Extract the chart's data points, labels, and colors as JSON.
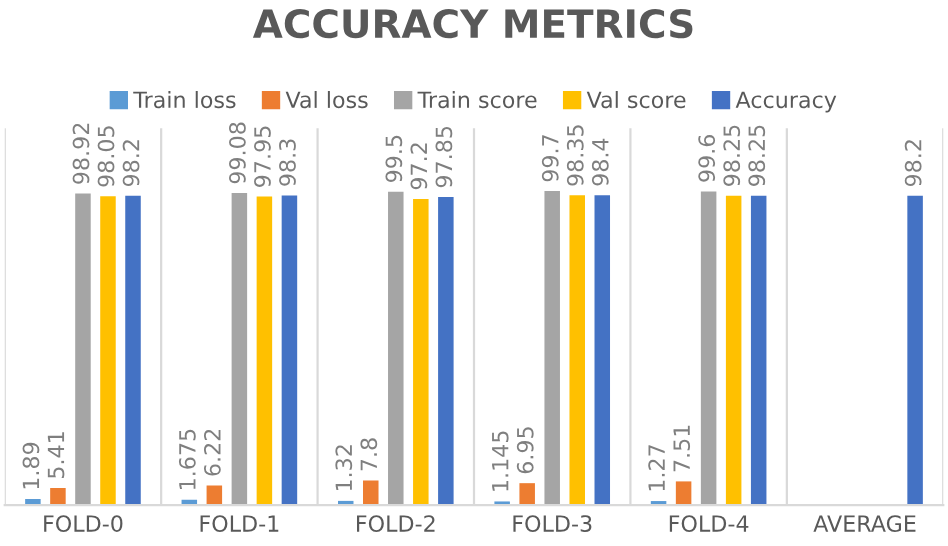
{
  "chart_data": {
    "type": "bar",
    "title": "ACCURACY METRICS",
    "categories": [
      "FOLD-0",
      "FOLD-1",
      "FOLD-2",
      "FOLD-3",
      "FOLD-4",
      "AVERAGE"
    ],
    "series": [
      {
        "name": "Train loss",
        "color": "#5b9bd5",
        "values": [
          1.89,
          1.675,
          1.32,
          1.145,
          1.27,
          null
        ]
      },
      {
        "name": "Val loss",
        "color": "#ed7d31",
        "values": [
          5.41,
          6.22,
          7.8,
          6.95,
          7.51,
          null
        ]
      },
      {
        "name": "Train score",
        "color": "#a5a5a5",
        "values": [
          98.92,
          99.08,
          99.5,
          99.7,
          99.6,
          null
        ]
      },
      {
        "name": "Val score",
        "color": "#ffc000",
        "values": [
          98.05,
          97.95,
          97.2,
          98.35,
          98.25,
          null
        ]
      },
      {
        "name": "Accuracy",
        "color": "#4472c4",
        "values": [
          98.2,
          98.3,
          97.85,
          98.4,
          98.25,
          98.2
        ]
      }
    ],
    "data_labels": true,
    "grid": "x",
    "legend": "top"
  }
}
